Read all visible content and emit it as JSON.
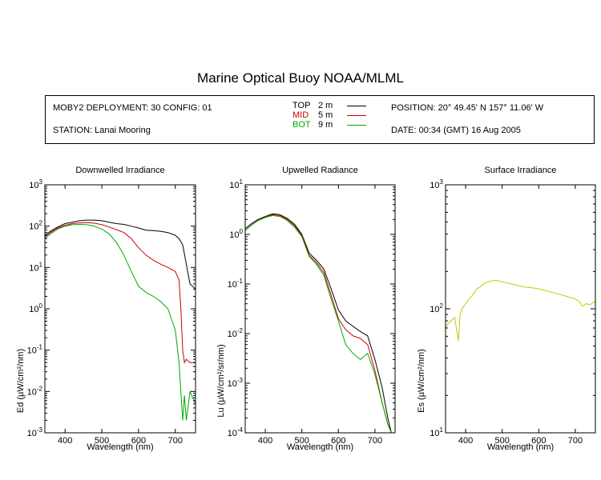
{
  "title": "Marine Optical Buoy NOAA/MLML",
  "info": {
    "deployment": "MOBY2 DEPLOYMENT: 30 CONFIG: 01",
    "station": "STATION: Lanai Mooring",
    "position": "POSITION: 20° 49.45' N   157° 11.06' W",
    "date": "DATE: 00:34 (GMT) 16 Aug 2005"
  },
  "legend": [
    {
      "name": "TOP",
      "depth": "2  m",
      "color": "#000000"
    },
    {
      "name": "MID",
      "depth": "5  m",
      "color": "#cc0000"
    },
    {
      "name": "BOT",
      "depth": "9  m",
      "color": "#00aa00"
    }
  ],
  "chart_data": [
    {
      "type": "line",
      "title": "Downwelled Irradiance",
      "xlabel": "Wavelength (nm)",
      "ylabel": "Ed  (µW/cm²/nm)",
      "xlim": [
        345,
        755
      ],
      "ylim": [
        0.001,
        1000
      ],
      "yscale": "log",
      "xticks": [
        400,
        500,
        600,
        700
      ],
      "yticks": [
        0.001,
        0.01,
        0.1,
        1,
        10,
        100,
        1000
      ],
      "ytick_labels": [
        {
          "b": "10",
          "e": "-3"
        },
        {
          "b": "10",
          "e": "-2"
        },
        {
          "b": "10",
          "e": "-1"
        },
        {
          "b": "10",
          "e": "0"
        },
        {
          "b": "10",
          "e": "1"
        },
        {
          "b": "10",
          "e": "2"
        },
        {
          "b": "10",
          "e": "3"
        }
      ],
      "series": [
        {
          "name": "TOP",
          "color": "#000000",
          "x": [
            345,
            360,
            380,
            400,
            420,
            440,
            460,
            480,
            500,
            520,
            540,
            560,
            580,
            600,
            620,
            640,
            660,
            680,
            700,
            710,
            720,
            730,
            740,
            755
          ],
          "y": [
            60,
            75,
            95,
            115,
            125,
            135,
            140,
            140,
            135,
            125,
            115,
            110,
            100,
            90,
            80,
            78,
            75,
            70,
            60,
            50,
            35,
            12,
            4,
            3
          ]
        },
        {
          "name": "MID",
          "color": "#cc0000",
          "x": [
            345,
            360,
            380,
            400,
            420,
            440,
            460,
            480,
            500,
            520,
            540,
            560,
            580,
            600,
            620,
            640,
            660,
            680,
            700,
            710,
            715,
            720,
            725,
            730,
            740,
            755
          ],
          "y": [
            55,
            70,
            90,
            105,
            115,
            120,
            122,
            118,
            108,
            95,
            82,
            70,
            50,
            30,
            20,
            15,
            12,
            10,
            8,
            5,
            1,
            0.1,
            0.05,
            0.06,
            0.05,
            0.05
          ]
        },
        {
          "name": "BOT",
          "color": "#00aa00",
          "x": [
            345,
            360,
            380,
            400,
            420,
            440,
            460,
            480,
            500,
            520,
            540,
            560,
            580,
            600,
            620,
            640,
            660,
            680,
            700,
            710,
            715,
            720,
            725,
            730,
            740,
            755
          ],
          "y": [
            50,
            65,
            85,
            100,
            108,
            110,
            108,
            100,
            85,
            65,
            40,
            20,
            8,
            3.5,
            2.5,
            2,
            1.5,
            1,
            0.3,
            0.05,
            0.01,
            0.002,
            0.008,
            0.002,
            0.01,
            0.005
          ]
        }
      ]
    },
    {
      "type": "line",
      "title": "Upwelled Radiance",
      "xlabel": "Wavelength (nm)",
      "ylabel": "Lu  (µW/cm²/sr/nm)",
      "xlim": [
        345,
        755
      ],
      "ylim": [
        0.0001,
        10
      ],
      "yscale": "log",
      "xticks": [
        400,
        500,
        600,
        700
      ],
      "yticks": [
        0.0001,
        0.001,
        0.01,
        0.1,
        1,
        10
      ],
      "ytick_labels": [
        {
          "b": "10",
          "e": "-4"
        },
        {
          "b": "10",
          "e": "-3"
        },
        {
          "b": "10",
          "e": "-2"
        },
        {
          "b": "10",
          "e": "-1"
        },
        {
          "b": "10",
          "e": "0"
        },
        {
          "b": "10",
          "e": "1"
        }
      ],
      "series": [
        {
          "name": "TOP",
          "color": "#000000",
          "x": [
            345,
            360,
            380,
            400,
            420,
            440,
            460,
            480,
            500,
            520,
            540,
            560,
            580,
            600,
            620,
            640,
            660,
            680,
            700,
            720,
            735,
            745
          ],
          "y": [
            1.3,
            1.6,
            2.0,
            2.3,
            2.6,
            2.5,
            2.1,
            1.6,
            1.0,
            0.42,
            0.3,
            0.2,
            0.08,
            0.03,
            0.018,
            0.014,
            0.011,
            0.009,
            0.003,
            0.0008,
            0.0002,
            0.0001
          ]
        },
        {
          "name": "MID",
          "color": "#cc0000",
          "x": [
            345,
            360,
            380,
            400,
            420,
            440,
            460,
            480,
            500,
            520,
            540,
            560,
            580,
            600,
            620,
            640,
            660,
            680,
            700,
            720,
            735,
            745
          ],
          "y": [
            1.2,
            1.5,
            1.9,
            2.2,
            2.5,
            2.4,
            2.0,
            1.5,
            0.95,
            0.38,
            0.27,
            0.17,
            0.06,
            0.02,
            0.012,
            0.009,
            0.008,
            0.006,
            0.0018,
            0.0004,
            0.00015,
            0.0001
          ]
        },
        {
          "name": "BOT",
          "color": "#00aa00",
          "x": [
            345,
            360,
            380,
            400,
            420,
            440,
            460,
            480,
            500,
            520,
            540,
            560,
            580,
            600,
            620,
            640,
            660,
            680,
            700,
            720,
            735,
            745
          ],
          "y": [
            1.2,
            1.5,
            1.9,
            2.2,
            2.4,
            2.3,
            1.9,
            1.4,
            0.9,
            0.36,
            0.25,
            0.15,
            0.05,
            0.018,
            0.006,
            0.004,
            0.003,
            0.004,
            0.0015,
            0.0004,
            0.00015,
            0.0001
          ]
        }
      ]
    },
    {
      "type": "line",
      "title": "Surface Irradiance",
      "xlabel": "Wavelength (nm)",
      "ylabel": "Es  (µW/cm²/nm)",
      "xlim": [
        345,
        755
      ],
      "ylim": [
        10,
        1000
      ],
      "yscale": "log",
      "xticks": [
        400,
        500,
        600,
        700
      ],
      "yticks": [
        10,
        100,
        1000
      ],
      "ytick_labels": [
        {
          "b": "10",
          "e": "1"
        },
        {
          "b": "10",
          "e": "2"
        },
        {
          "b": "10",
          "e": "3"
        }
      ],
      "series": [
        {
          "name": "Es",
          "color": "#c8c800",
          "x": [
            345,
            350,
            360,
            370,
            380,
            385,
            390,
            400,
            410,
            420,
            430,
            440,
            450,
            460,
            480,
            500,
            520,
            540,
            560,
            580,
            600,
            620,
            640,
            660,
            680,
            700,
            710,
            720,
            730,
            740,
            755
          ],
          "y": [
            70,
            75,
            80,
            85,
            55,
            90,
            100,
            110,
            120,
            130,
            145,
            150,
            160,
            165,
            170,
            165,
            160,
            155,
            150,
            148,
            145,
            140,
            135,
            130,
            125,
            120,
            115,
            105,
            110,
            108,
            115
          ]
        }
      ]
    }
  ]
}
